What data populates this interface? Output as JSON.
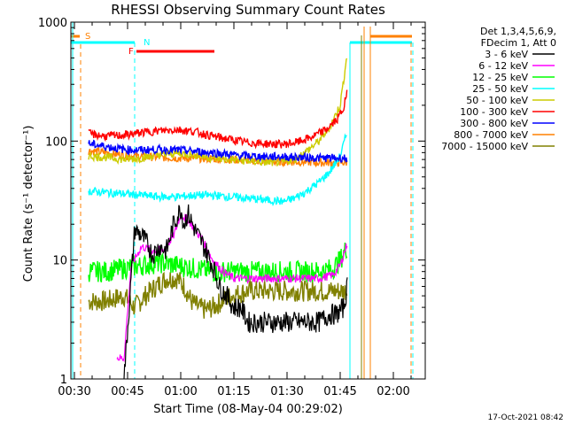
{
  "chart_data": {
    "type": "line",
    "title": "RHESSI Observing Summary Count Rates",
    "xlabel": "Start Time (08-May-04 00:29:02)",
    "ylabel": "Count Rate (s⁻¹ detector⁻¹)",
    "x_unit": "minutes since 00:29:02",
    "xlim": [
      0,
      100
    ],
    "ylim": [
      1,
      1000
    ],
    "yscale": "log",
    "x_ticks": [
      {
        "at": 1,
        "label": "00:30"
      },
      {
        "at": 16,
        "label": "00:45"
      },
      {
        "at": 31,
        "label": "01:00"
      },
      {
        "at": 46,
        "label": "01:15"
      },
      {
        "at": 61,
        "label": "01:30"
      },
      {
        "at": 76,
        "label": "01:45"
      },
      {
        "at": 91,
        "label": "02:00"
      }
    ],
    "y_ticks": [
      {
        "at": 1,
        "label": "1"
      },
      {
        "at": 10,
        "label": "10"
      },
      {
        "at": 100,
        "label": "100"
      },
      {
        "at": 1000,
        "label": "1000"
      }
    ],
    "legend_position": "right",
    "legend_header": [
      "Det 1,3,4,5,6,9,",
      "FDecim 1, Att 0"
    ],
    "series": [
      {
        "name": "3 - 6 keV",
        "color": "#000000",
        "points": [
          [
            15,
            1
          ],
          [
            18,
            18
          ],
          [
            20,
            16
          ],
          [
            22,
            13
          ],
          [
            23,
            11
          ],
          [
            25,
            13
          ],
          [
            27,
            12
          ],
          [
            29,
            20
          ],
          [
            31,
            27
          ],
          [
            32,
            20
          ],
          [
            33,
            25
          ],
          [
            35,
            18
          ],
          [
            37,
            14
          ],
          [
            40,
            9
          ],
          [
            42,
            6
          ],
          [
            44,
            5
          ],
          [
            46,
            4
          ],
          [
            48,
            4
          ],
          [
            50,
            3
          ],
          [
            55,
            3
          ],
          [
            60,
            3
          ],
          [
            65,
            3
          ],
          [
            70,
            3
          ],
          [
            73,
            3.5
          ],
          [
            75,
            3.5
          ],
          [
            77,
            4
          ],
          [
            78,
            6
          ]
        ]
      },
      {
        "name": "6 - 12 keV",
        "color": "#ff00ff",
        "points": [
          [
            13,
            1.5
          ],
          [
            15,
            1.5
          ],
          [
            17,
            9
          ],
          [
            20,
            13
          ],
          [
            23,
            12
          ],
          [
            26,
            12
          ],
          [
            29,
            16
          ],
          [
            31,
            24
          ],
          [
            33,
            22
          ],
          [
            35,
            18
          ],
          [
            37,
            15
          ],
          [
            40,
            10
          ],
          [
            43,
            8
          ],
          [
            46,
            7
          ],
          [
            50,
            7
          ],
          [
            55,
            7
          ],
          [
            60,
            7
          ],
          [
            65,
            7
          ],
          [
            70,
            7
          ],
          [
            74,
            7.5
          ],
          [
            76,
            9
          ],
          [
            78,
            14
          ]
        ]
      },
      {
        "name": "12 - 25 keV",
        "color": "#00ff00",
        "points": [
          [
            5,
            8
          ],
          [
            10,
            8
          ],
          [
            15,
            8.5
          ],
          [
            20,
            9
          ],
          [
            25,
            9.5
          ],
          [
            30,
            9
          ],
          [
            35,
            8.5
          ],
          [
            40,
            8
          ],
          [
            45,
            8
          ],
          [
            50,
            8
          ],
          [
            55,
            8
          ],
          [
            60,
            8
          ],
          [
            65,
            8
          ],
          [
            70,
            8
          ],
          [
            74,
            8.5
          ],
          [
            76,
            10
          ],
          [
            78,
            13
          ]
        ]
      },
      {
        "name": "25 - 50 keV",
        "color": "#00ffff",
        "points": [
          [
            5,
            38
          ],
          [
            10,
            37
          ],
          [
            15,
            36
          ],
          [
            20,
            35
          ],
          [
            25,
            34
          ],
          [
            30,
            34
          ],
          [
            35,
            35
          ],
          [
            40,
            35
          ],
          [
            45,
            34
          ],
          [
            50,
            33
          ],
          [
            55,
            32
          ],
          [
            60,
            31
          ],
          [
            63,
            33
          ],
          [
            66,
            37
          ],
          [
            70,
            45
          ],
          [
            73,
            55
          ],
          [
            76,
            75
          ],
          [
            78,
            120
          ]
        ]
      },
      {
        "name": "50 - 100 keV",
        "color": "#cccc00",
        "points": [
          [
            5,
            75
          ],
          [
            10,
            73
          ],
          [
            15,
            70
          ],
          [
            20,
            72
          ],
          [
            25,
            77
          ],
          [
            30,
            79
          ],
          [
            35,
            77
          ],
          [
            40,
            72
          ],
          [
            45,
            70
          ],
          [
            50,
            68
          ],
          [
            55,
            66
          ],
          [
            60,
            67
          ],
          [
            63,
            70
          ],
          [
            66,
            80
          ],
          [
            70,
            100
          ],
          [
            73,
            130
          ],
          [
            76,
            200
          ],
          [
            78,
            550
          ]
        ]
      },
      {
        "name": "100 - 300 keV",
        "color": "#ff0000",
        "points": [
          [
            5,
            115
          ],
          [
            10,
            110
          ],
          [
            15,
            112
          ],
          [
            20,
            118
          ],
          [
            25,
            122
          ],
          [
            30,
            125
          ],
          [
            35,
            120
          ],
          [
            40,
            110
          ],
          [
            45,
            103
          ],
          [
            50,
            97
          ],
          [
            55,
            95
          ],
          [
            60,
            94
          ],
          [
            64,
            98
          ],
          [
            68,
            108
          ],
          [
            72,
            125
          ],
          [
            75,
            150
          ],
          [
            77,
            190
          ],
          [
            78,
            260
          ]
        ]
      },
      {
        "name": "300 - 800 keV",
        "color": "#0000ff",
        "points": [
          [
            5,
            95
          ],
          [
            10,
            90
          ],
          [
            15,
            85
          ],
          [
            20,
            84
          ],
          [
            25,
            85
          ],
          [
            30,
            84
          ],
          [
            35,
            82
          ],
          [
            40,
            80
          ],
          [
            45,
            77
          ],
          [
            50,
            75
          ],
          [
            55,
            74
          ],
          [
            60,
            74
          ],
          [
            65,
            73
          ],
          [
            70,
            72
          ],
          [
            75,
            72
          ],
          [
            78,
            72
          ]
        ]
      },
      {
        "name": "800 - 7000 keV",
        "color": "#ff8000",
        "points": [
          [
            5,
            83
          ],
          [
            10,
            80
          ],
          [
            15,
            76
          ],
          [
            20,
            74
          ],
          [
            25,
            73
          ],
          [
            30,
            72
          ],
          [
            35,
            72
          ],
          [
            40,
            71
          ],
          [
            45,
            70
          ],
          [
            50,
            69
          ],
          [
            55,
            68
          ],
          [
            60,
            67
          ],
          [
            65,
            67
          ],
          [
            70,
            66
          ],
          [
            75,
            66
          ],
          [
            78,
            66
          ]
        ]
      },
      {
        "name": "7000 - 15000 keV",
        "color": "#808000",
        "points": [
          [
            5,
            4.5
          ],
          [
            10,
            4.5
          ],
          [
            15,
            5
          ],
          [
            18,
            4
          ],
          [
            21,
            5
          ],
          [
            24,
            6
          ],
          [
            27,
            7
          ],
          [
            30,
            7
          ],
          [
            32,
            6
          ],
          [
            34,
            4.5
          ],
          [
            36,
            4
          ],
          [
            38,
            3.8
          ],
          [
            40,
            4
          ],
          [
            45,
            5
          ],
          [
            50,
            5.5
          ],
          [
            55,
            5.5
          ],
          [
            60,
            5.5
          ],
          [
            65,
            5.5
          ],
          [
            70,
            5.5
          ],
          [
            75,
            5.5
          ],
          [
            78,
            5.5
          ]
        ]
      }
    ],
    "markers": [
      {
        "label": "S",
        "color": "#ff8000"
      },
      {
        "label": "N",
        "color": "#00ffff"
      },
      {
        "label": "F",
        "color": "#ff0000"
      }
    ],
    "footer_date": "17-Oct-2021 08:42"
  }
}
